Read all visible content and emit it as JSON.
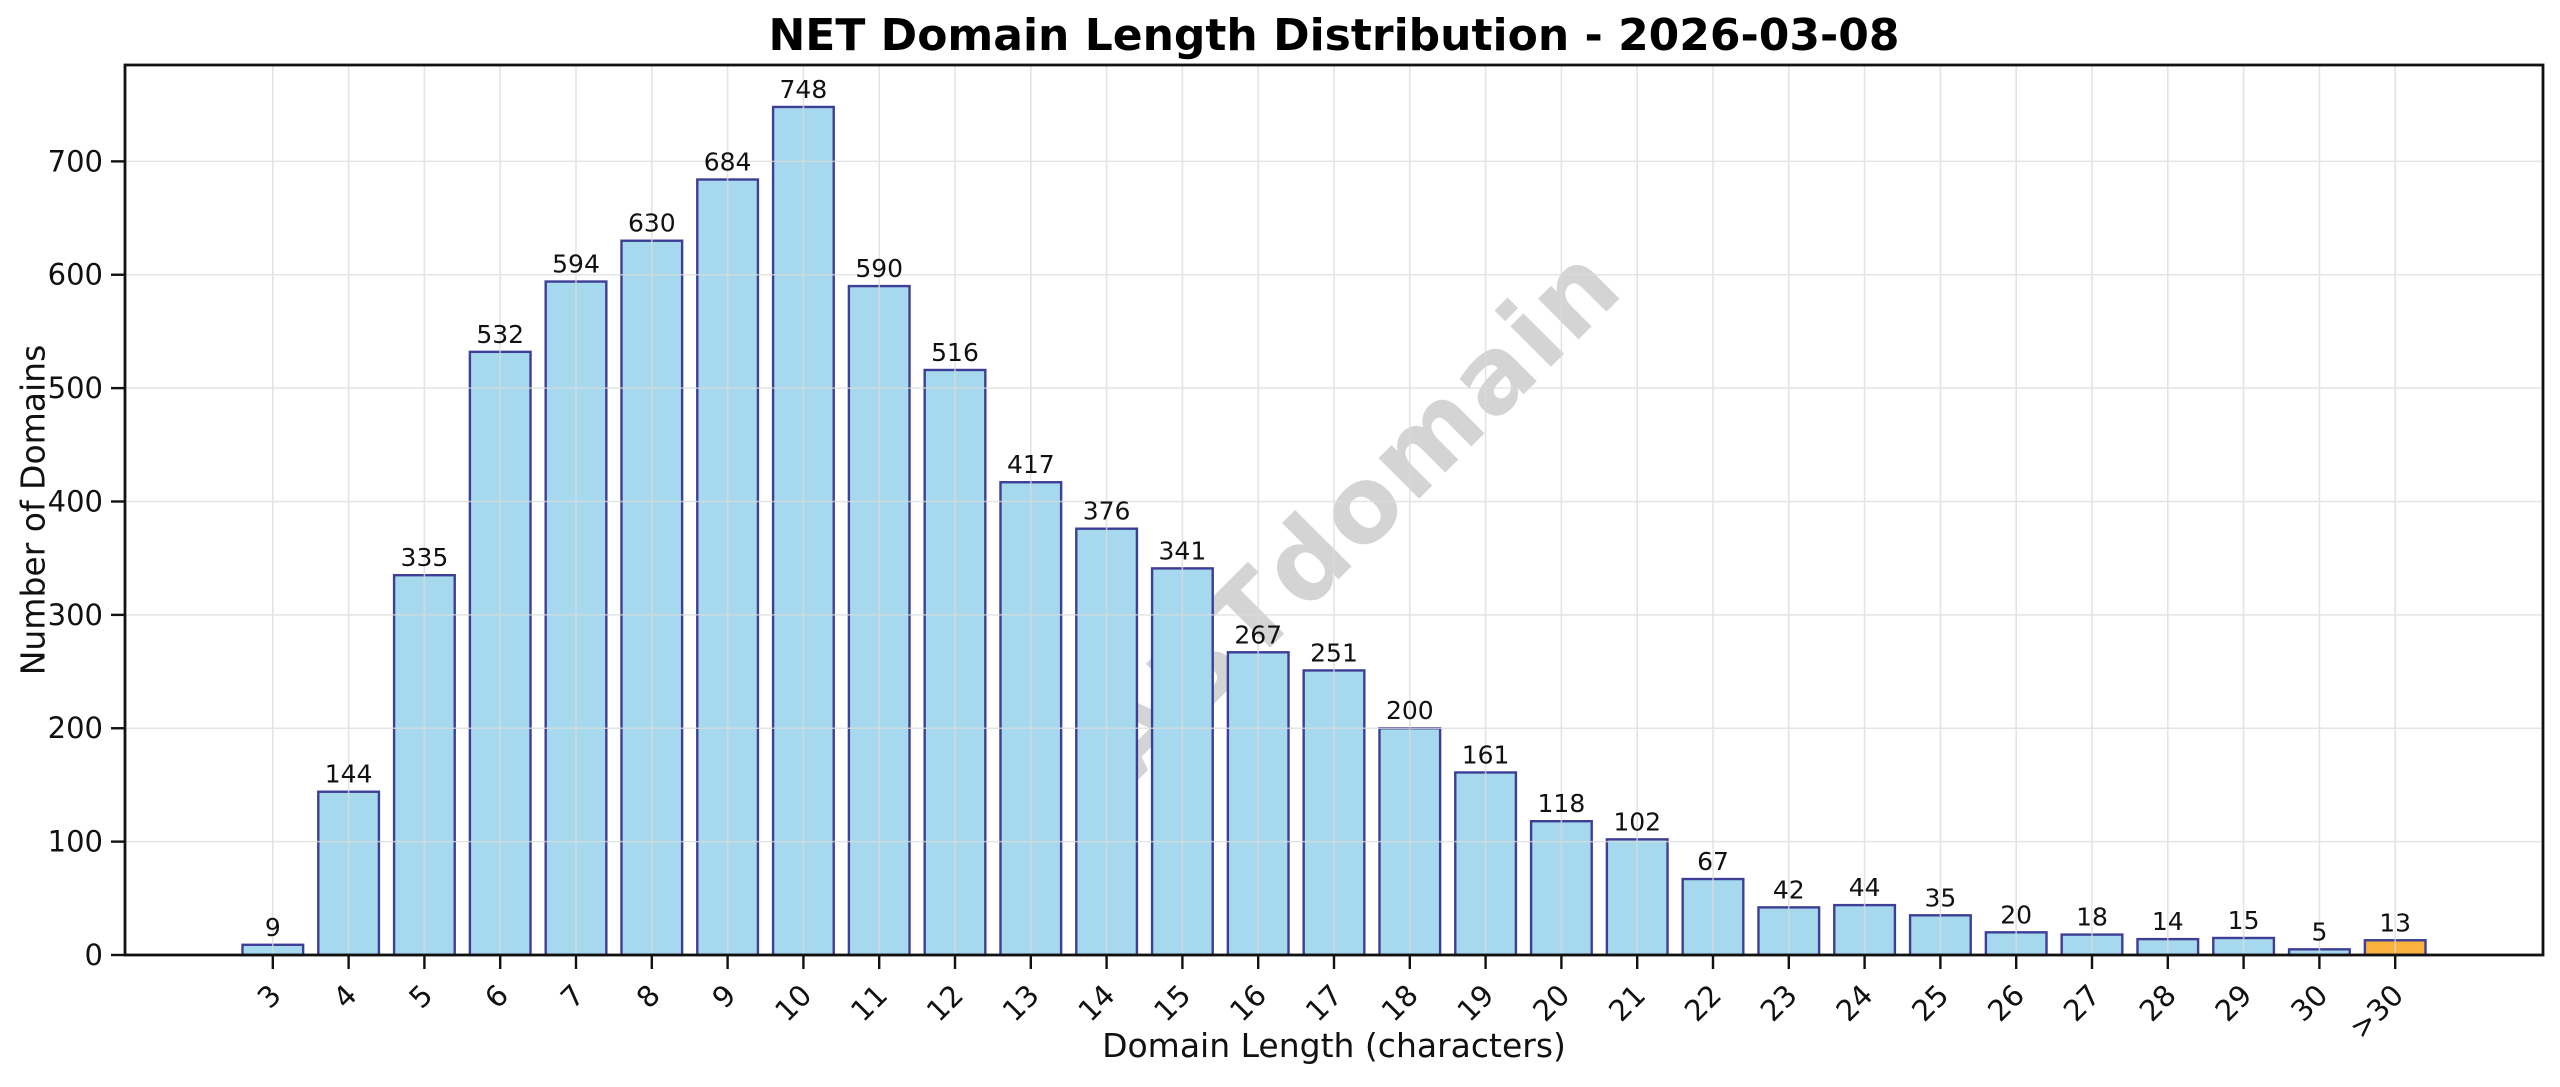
{
  "watermark": "ABTdomain",
  "chart_data": {
    "type": "bar",
    "title": "NET Domain Length Distribution - 2026-03-08",
    "xlabel": "Domain Length (characters)",
    "ylabel": "Number of Domains",
    "categories": [
      "3",
      "4",
      "5",
      "6",
      "7",
      "8",
      "9",
      "10",
      "11",
      "12",
      "13",
      "14",
      "15",
      "16",
      "17",
      "18",
      "19",
      "20",
      "21",
      "22",
      "23",
      "24",
      "25",
      "26",
      "27",
      "28",
      "29",
      "30",
      ">30"
    ],
    "values": [
      9,
      144,
      335,
      532,
      594,
      630,
      684,
      748,
      590,
      516,
      417,
      376,
      341,
      267,
      251,
      200,
      161,
      118,
      102,
      67,
      42,
      44,
      35,
      20,
      18,
      14,
      15,
      5,
      13
    ],
    "ylim": [
      0,
      785
    ],
    "yticks": [
      0,
      100,
      200,
      300,
      400,
      500,
      600,
      700
    ],
    "grid": true,
    "legend": false,
    "x_tick_rotation": 45,
    "bar_width_fraction": 0.8,
    "colors": {
      "bar_fill": "#A6D9EE",
      "bar_edge": "#3E3E96",
      "highlight_fill": "#F9B23D",
      "highlight_index": 28,
      "grid": "#DBDBDB",
      "spine": "#111111",
      "text": "#111111",
      "watermark": "#B0B0B0"
    }
  }
}
